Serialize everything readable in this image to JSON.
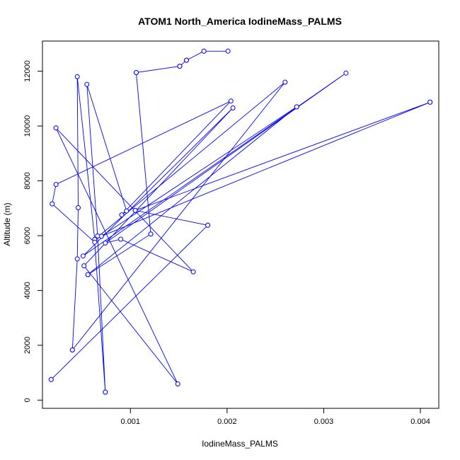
{
  "chart_data": {
    "type": "line",
    "title": "ATOM1 North_America IodineMass_PALMS",
    "xlabel": "IodineMass_PALMS",
    "ylabel": "Altitude (m)",
    "xlim": [
      9e-05,
      0.00419
    ],
    "ylim": [
      -300,
      13100
    ],
    "xticks": [
      {
        "value": 0.001,
        "label": "0.001"
      },
      {
        "value": 0.002,
        "label": "0.002"
      },
      {
        "value": 0.003,
        "label": "0.003"
      },
      {
        "value": 0.004,
        "label": "0.004"
      }
    ],
    "yticks": [
      {
        "value": 0,
        "label": "0"
      },
      {
        "value": 2000,
        "label": "2000"
      },
      {
        "value": 4000,
        "label": "4000"
      },
      {
        "value": 6000,
        "label": "6000"
      },
      {
        "value": 8000,
        "label": "8000"
      },
      {
        "value": 10000,
        "label": "10000"
      },
      {
        "value": 12000,
        "label": "12000"
      }
    ],
    "grid": false,
    "series": [
      {
        "color": "#0000ff",
        "points": [
          {
            "x": 0.00018,
            "y": 750
          },
          {
            "x": 0.0018,
            "y": 6380
          },
          {
            "x": 0.00105,
            "y": 6920
          },
          {
            "x": 0.0041,
            "y": 10870
          },
          {
            "x": 0.0007,
            "y": 5980
          },
          {
            "x": 0.00272,
            "y": 10700
          },
          {
            "x": 0.00056,
            "y": 4580
          },
          {
            "x": 0.00121,
            "y": 6060
          },
          {
            "x": 0.00106,
            "y": 11950
          },
          {
            "x": 0.00151,
            "y": 12180
          },
          {
            "x": 0.00158,
            "y": 12400
          },
          {
            "x": 0.00176,
            "y": 12730
          },
          {
            "x": 0.00201,
            "y": 12730
          },
          {
            "x": 0.00176,
            "y": 12730
          },
          {
            "x": 0.00158,
            "y": 12400
          },
          {
            "x": 0.00151,
            "y": 12180
          },
          {
            "x": 0.00106,
            "y": 11950
          },
          {
            "x": 0.00121,
            "y": 6060
          },
          {
            "x": 0.00056,
            "y": 4580
          },
          {
            "x": 0.00272,
            "y": 10700
          },
          {
            "x": 0.0007,
            "y": 5980
          },
          {
            "x": 0.0041,
            "y": 10870
          },
          {
            "x": 0.00105,
            "y": 6920
          },
          {
            "x": 0.0018,
            "y": 6380
          },
          {
            "x": 0.00018,
            "y": 750
          }
        ]
      },
      {
        "color": "#0000ff",
        "points": [
          {
            "x": 0.0004,
            "y": 1830
          },
          {
            "x": 0.0026,
            "y": 11600
          },
          {
            "x": 0.00063,
            "y": 5860
          },
          {
            "x": 0.00045,
            "y": 11800
          },
          {
            "x": 0.00046,
            "y": 7020
          },
          {
            "x": 0.00045,
            "y": 5150
          },
          {
            "x": 0.0004,
            "y": 1830
          }
        ]
      },
      {
        "color": "#0000ff",
        "points": [
          {
            "x": 0.00023,
            "y": 9930
          },
          {
            "x": 0.00165,
            "y": 4680
          },
          {
            "x": 0.0009,
            "y": 5870
          },
          {
            "x": 0.00074,
            "y": 5730
          },
          {
            "x": 0.00323,
            "y": 11930
          },
          {
            "x": 0.00051,
            "y": 5260
          },
          {
            "x": 0.00206,
            "y": 10660
          },
          {
            "x": 0.00052,
            "y": 4900
          },
          {
            "x": 0.00149,
            "y": 590
          },
          {
            "x": 0.00023,
            "y": 9930
          }
        ]
      },
      {
        "color": "#0000ff",
        "points": [
          {
            "x": 0.00074,
            "y": 290
          },
          {
            "x": 0.00063,
            "y": 5760
          },
          {
            "x": 0.00019,
            "y": 7160
          },
          {
            "x": 0.00023,
            "y": 7870
          },
          {
            "x": 0.00204,
            "y": 10910
          },
          {
            "x": 0.00091,
            "y": 6760
          },
          {
            "x": 0.00096,
            "y": 6900
          },
          {
            "x": 0.00055,
            "y": 11520
          },
          {
            "x": 0.00066,
            "y": 5990
          },
          {
            "x": 0.00074,
            "y": 290
          }
        ]
      }
    ]
  }
}
